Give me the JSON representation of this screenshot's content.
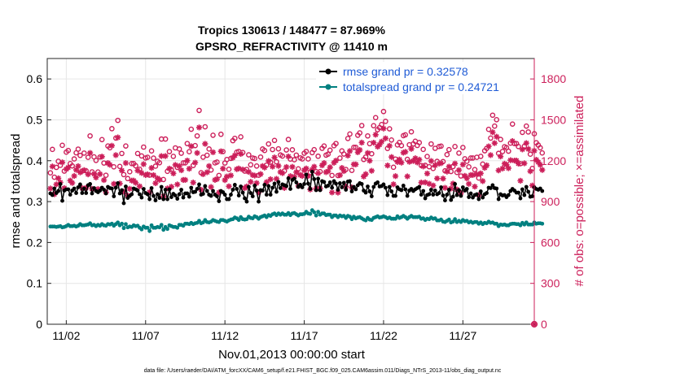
{
  "chart_data": {
    "type": "line",
    "title": "Tropics 130613 / 148477 = 87.969%",
    "subtitle": "GPSRO_REFRACTIVITY @ 11410 m",
    "xlabel": "Nov.01,2013 00:00:00 start",
    "ylabel": "rmse and totalspread",
    "ylabel_right": "# of obs: o=possible; ×=assimilated",
    "footnote": "data file: /Users/raeder/DAI/ATM_forcXX/CAM6_setup/f.e21.FHIST_BGC.f09_025.CAM6assim.011/Diags_NTrS_2013-11/obs_diag_output.nc",
    "xlim": [
      0.3,
      31.0
    ],
    "ylim": [
      0,
      0.65
    ],
    "ylim_right": [
      0,
      1950
    ],
    "x_ticks": [
      1.5,
      6.5,
      11.5,
      16.5,
      21.5,
      26.5
    ],
    "x_tick_labels": [
      "11/02",
      "11/07",
      "11/12",
      "11/17",
      "11/22",
      "11/27"
    ],
    "y_ticks": [
      0,
      0.1,
      0.2,
      0.3,
      0.4,
      0.5,
      0.6
    ],
    "y_tick_labels": [
      "0",
      "0.1",
      "0.2",
      "0.3",
      "0.4",
      "0.5",
      "0.6"
    ],
    "y_ticks_right": [
      0,
      300,
      600,
      900,
      1200,
      1500,
      1800
    ],
    "y_tick_labels_right": [
      "0",
      "300",
      "600",
      "900",
      "1200",
      "1500",
      "1800"
    ],
    "grid": true,
    "legend_position": "top-right",
    "colors": {
      "rmse": "#000000",
      "spread": "#008080",
      "obs": "#cc1f5a",
      "legend_text": "#1f5bd6"
    },
    "series": [
      {
        "name": "rmse grand pr = 0.32578",
        "axis": "left",
        "values": [
          0.32,
          0.316,
          0.332,
          0.321,
          0.326,
          0.343,
          0.302,
          0.327,
          0.33,
          0.33,
          0.317,
          0.327,
          0.332,
          0.321,
          0.335,
          0.342,
          0.321,
          0.332,
          0.321,
          0.34,
          0.343,
          0.32,
          0.333,
          0.326,
          0.323,
          0.327,
          0.334,
          0.329,
          0.32,
          0.336,
          0.333,
          0.332,
          0.313,
          0.334,
          0.345,
          0.32,
          0.328,
          0.296,
          0.337,
          0.309,
          0.314,
          0.318,
          0.332,
          0.33,
          0.327,
          0.318,
          0.31,
          0.331,
          0.321,
          0.318,
          0.306,
          0.333,
          0.314,
          0.303,
          0.318,
          0.309,
          0.336,
          0.306,
          0.329,
          0.306,
          0.33,
          0.311,
          0.319,
          0.315,
          0.307,
          0.318,
          0.329,
          0.31,
          0.32,
          0.32,
          0.312,
          0.334,
          0.323,
          0.324,
          0.331,
          0.342,
          0.317,
          0.319,
          0.338,
          0.326,
          0.317,
          0.314,
          0.326,
          0.317,
          0.313,
          0.301,
          0.326,
          0.323,
          0.317,
          0.306,
          0.306,
          0.317,
          0.329,
          0.341,
          0.331,
          0.315,
          0.337,
          0.322,
          0.308,
          0.3,
          0.336,
          0.321,
          0.313,
          0.339,
          0.327,
          0.3,
          0.328,
          0.327,
          0.341,
          0.317,
          0.338,
          0.317,
          0.334,
          0.344,
          0.324,
          0.348,
          0.333,
          0.342,
          0.34,
          0.338,
          0.357,
          0.331,
          0.353,
          0.356,
          0.347,
          0.336,
          0.341,
          0.335,
          0.343,
          0.366,
          0.344,
          0.331,
          0.373,
          0.355,
          0.328,
          0.356,
          0.328,
          0.35,
          0.348,
          0.337,
          0.339,
          0.347,
          0.334,
          0.35,
          0.344,
          0.329,
          0.345,
          0.335,
          0.346,
          0.329,
          0.349,
          0.35,
          0.325,
          0.336,
          0.33,
          0.34,
          0.345,
          0.343,
          0.327,
          0.322,
          0.337,
          0.325,
          0.313,
          0.336,
          0.344,
          0.347,
          0.337,
          0.338,
          0.342,
          0.334,
          0.316,
          0.336,
          0.325,
          0.314,
          0.314,
          0.335,
          0.33,
          0.328,
          0.339,
          0.33,
          0.314,
          0.327,
          0.331,
          0.326,
          0.33,
          0.333,
          0.336,
          0.317,
          0.326,
          0.308,
          0.316,
          0.318,
          0.329,
          0.317,
          0.327,
          0.318,
          0.321,
          0.335,
          0.315,
          0.303,
          0.317,
          0.329,
          0.304,
          0.312,
          0.343,
          0.316,
          0.328,
          0.314,
          0.335,
          0.327,
          0.331,
          0.311,
          0.32,
          0.31,
          0.316,
          0.318,
          0.306,
          0.325,
          0.31,
          0.318,
          0.321,
          0.334,
          0.333,
          0.34,
          0.333,
          0.332,
          0.306,
          0.318,
          0.315,
          0.316,
          0.311,
          0.316,
          0.326,
          0.331,
          0.327,
          0.322,
          0.322,
          0.308,
          0.33,
          0.316,
          0.336,
          0.324,
          0.312,
          0.313,
          0.335,
          0.331,
          0.329,
          0.332,
          0.326
        ]
      },
      {
        "name": "totalspread grand pr = 0.24721",
        "axis": "left",
        "values": [
          0.239,
          0.239,
          0.239,
          0.238,
          0.239,
          0.24,
          0.237,
          0.238,
          0.24,
          0.243,
          0.24,
          0.24,
          0.241,
          0.239,
          0.241,
          0.245,
          0.242,
          0.242,
          0.243,
          0.244,
          0.247,
          0.242,
          0.243,
          0.24,
          0.243,
          0.241,
          0.245,
          0.242,
          0.241,
          0.245,
          0.244,
          0.246,
          0.241,
          0.245,
          0.249,
          0.242,
          0.246,
          0.235,
          0.245,
          0.237,
          0.239,
          0.238,
          0.242,
          0.24,
          0.241,
          0.236,
          0.232,
          0.239,
          0.236,
          0.236,
          0.228,
          0.242,
          0.236,
          0.236,
          0.238,
          0.237,
          0.243,
          0.231,
          0.238,
          0.233,
          0.242,
          0.24,
          0.238,
          0.238,
          0.236,
          0.243,
          0.243,
          0.241,
          0.246,
          0.246,
          0.245,
          0.248,
          0.245,
          0.247,
          0.248,
          0.253,
          0.247,
          0.249,
          0.255,
          0.25,
          0.249,
          0.251,
          0.255,
          0.253,
          0.251,
          0.25,
          0.255,
          0.255,
          0.253,
          0.251,
          0.254,
          0.256,
          0.257,
          0.261,
          0.259,
          0.255,
          0.262,
          0.257,
          0.256,
          0.257,
          0.263,
          0.26,
          0.259,
          0.264,
          0.262,
          0.258,
          0.262,
          0.264,
          0.266,
          0.262,
          0.267,
          0.265,
          0.269,
          0.271,
          0.267,
          0.271,
          0.268,
          0.271,
          0.268,
          0.268,
          0.272,
          0.267,
          0.271,
          0.272,
          0.269,
          0.266,
          0.269,
          0.269,
          0.27,
          0.275,
          0.271,
          0.27,
          0.279,
          0.274,
          0.266,
          0.275,
          0.268,
          0.271,
          0.271,
          0.267,
          0.268,
          0.268,
          0.262,
          0.266,
          0.266,
          0.262,
          0.266,
          0.264,
          0.265,
          0.26,
          0.265,
          0.263,
          0.257,
          0.263,
          0.259,
          0.261,
          0.262,
          0.259,
          0.256,
          0.254,
          0.26,
          0.256,
          0.255,
          0.26,
          0.262,
          0.264,
          0.261,
          0.262,
          0.264,
          0.262,
          0.259,
          0.261,
          0.258,
          0.258,
          0.258,
          0.264,
          0.26,
          0.262,
          0.265,
          0.262,
          0.258,
          0.262,
          0.265,
          0.262,
          0.262,
          0.262,
          0.263,
          0.258,
          0.259,
          0.255,
          0.258,
          0.257,
          0.261,
          0.258,
          0.259,
          0.254,
          0.254,
          0.256,
          0.251,
          0.25,
          0.253,
          0.256,
          0.249,
          0.251,
          0.257,
          0.25,
          0.253,
          0.25,
          0.255,
          0.252,
          0.253,
          0.249,
          0.251,
          0.248,
          0.25,
          0.25,
          0.246,
          0.249,
          0.245,
          0.248,
          0.247,
          0.251,
          0.248,
          0.249,
          0.246,
          0.246,
          0.24,
          0.244,
          0.243,
          0.244,
          0.242,
          0.242,
          0.245,
          0.246,
          0.246,
          0.245,
          0.245,
          0.242,
          0.248,
          0.244,
          0.249,
          0.244,
          0.244,
          0.244,
          0.249,
          0.246,
          0.247,
          0.247,
          0.246
        ]
      },
      {
        "name": "possible",
        "axis": "right",
        "marker": "o",
        "values": [
          1111,
          1283,
          1079,
          1151,
          1196,
          1166,
          1313,
          1124,
          1263,
          1275,
          1179,
          1162,
          1213,
          1258,
          1285,
          1239,
          1124,
          1256,
          1126,
          1225,
          1382,
          1118,
          1228,
          1202,
          1117,
          1227,
          1355,
          1183,
          1093,
          1308,
          1295,
          1435,
          1155,
          1366,
          1496,
          1158,
          1253,
          1098,
          1308,
          1069,
          1119,
          1179,
          1179,
          1163,
          1253,
          1137,
          1235,
          1300,
          1220,
          1225,
          1094,
          1272,
          1219,
          1160,
          1196,
          1185,
          1359,
          1062,
          1359,
          1122,
          1267,
          1134,
          1232,
          1294,
          1151,
          1286,
          1255,
          1184,
          1184,
          1326,
          1266,
          1431,
          1165,
          1311,
          1382,
          1569,
          1112,
          1226,
          1449,
          1240,
          1286,
          1132,
          1387,
          1184,
          1190,
          1092,
          1394,
          1267,
          1183,
          1209,
          1137,
          1217,
          1347,
          1364,
          1263,
          1268,
          1375,
          1260,
          1124,
          1136,
          1243,
          1170,
          1220,
          1216,
          1161,
          1093,
          1227,
          1286,
          1275,
          1168,
          1323,
          1189,
          1282,
          1349,
          1192,
          1287,
          1242,
          1234,
          1125,
          1279,
          1356,
          1212,
          1280,
          1207,
          1241,
          1140,
          1221,
          1213,
          1255,
          1268,
          1213,
          1114,
          1259,
          1281,
          1120,
          1233,
          1120,
          1291,
          1308,
          1241,
          1248,
          1277,
          1092,
          1310,
          1326,
          1091,
          1219,
          1272,
          1249,
          1136,
          1363,
          1396,
          1129,
          1298,
          1298,
          1387,
          1404,
          1458,
          1209,
          1227,
          1382,
          1325,
          1251,
          1457,
          1516,
          1428,
          1443,
          1465,
          1561,
          1489,
          1290,
          1434,
          1352,
          1152,
          1212,
          1316,
          1334,
          1311,
          1384,
          1390,
          1210,
          1317,
          1412,
          1323,
          1343,
          1312,
          1333,
          1165,
          1283,
          1166,
          1231,
          1156,
          1323,
          1143,
          1291,
          1195,
          1304,
          1307,
          1194,
          1126,
          1245,
          1281,
          1121,
          1157,
          1304,
          1114,
          1256,
          1088,
          1297,
          1214,
          1196,
          1155,
          1220,
          1220,
          1135,
          1225,
          1073,
          1232,
          1175,
          1273,
          1291,
          1430,
          1366,
          1534,
          1454,
          1501,
          1254,
          1356,
          1268,
          1303,
          1296,
          1270,
          1329,
          1469,
          1326,
          1326,
          1304,
          1178,
          1408,
          1306,
          1454,
          1411,
          1248,
          1143,
          1398,
          1332,
          1315,
          1295,
          1257
        ]
      },
      {
        "name": "assimilated",
        "axis": "right",
        "marker": "*",
        "values": [
          996,
          1158,
          954,
          1026,
          1071,
          1041,
          1188,
          999,
          1138,
          1150,
          1054,
          1037,
          1088,
          1133,
          1160,
          1114,
          999,
          1131,
          1001,
          1100,
          1257,
          993,
          1103,
          1077,
          992,
          1102,
          1230,
          1058,
          968,
          1183,
          1170,
          1310,
          1030,
          1241,
          1371,
          1033,
          1128,
          973,
          1183,
          944,
          994,
          1054,
          1054,
          1038,
          1128,
          1012,
          1110,
          1175,
          1095,
          1100,
          969,
          1147,
          1094,
          1035,
          1071,
          1060,
          1234,
          937,
          1234,
          997,
          1142,
          1009,
          1107,
          1169,
          1026,
          1161,
          1130,
          1059,
          1059,
          1201,
          1141,
          1306,
          1040,
          1186,
          1257,
          1444,
          987,
          1101,
          1324,
          1115,
          1161,
          1007,
          1262,
          1059,
          1065,
          967,
          1269,
          1142,
          1058,
          1084,
          1012,
          1092,
          1222,
          1239,
          1138,
          1143,
          1250,
          1135,
          999,
          1011,
          1118,
          1045,
          1095,
          1091,
          1036,
          968,
          1102,
          1161,
          1150,
          1043,
          1198,
          1064,
          1157,
          1224,
          1067,
          1162,
          1117,
          1109,
          1000,
          1154,
          1231,
          1087,
          1155,
          1082,
          1116,
          1015,
          1096,
          1088,
          1130,
          1143,
          1088,
          989,
          1134,
          1156,
          995,
          1108,
          995,
          1166,
          1183,
          1116,
          1123,
          1152,
          967,
          1185,
          1201,
          966,
          1094,
          1147,
          1124,
          1011,
          1238,
          1271,
          1004,
          1173,
          1173,
          1262,
          1279,
          1333,
          1084,
          1102,
          1257,
          1200,
          1126,
          1332,
          1391,
          1303,
          1318,
          1340,
          1436,
          1364,
          1165,
          1309,
          1227,
          1027,
          1087,
          1191,
          1209,
          1186,
          1259,
          1265,
          1085,
          1192,
          1287,
          1198,
          1218,
          1187,
          1208,
          1040,
          1158,
          1041,
          1106,
          1031,
          1198,
          1018,
          1166,
          1070,
          1179,
          1182,
          1069,
          1001,
          1120,
          1156,
          996,
          1032,
          1179,
          989,
          1131,
          963,
          1172,
          1089,
          1071,
          1030,
          1095,
          1095,
          1010,
          1100,
          948,
          1107,
          1050,
          1148,
          1166,
          1305,
          1241,
          1409,
          1329,
          1376,
          1129,
          1231,
          1143,
          1178,
          1171,
          1145,
          1204,
          1344,
          1201,
          1201,
          1179,
          1053,
          1283,
          1181,
          1329,
          1286,
          1123,
          1018,
          1273,
          1207,
          1190,
          1170,
          1132
        ]
      }
    ]
  }
}
